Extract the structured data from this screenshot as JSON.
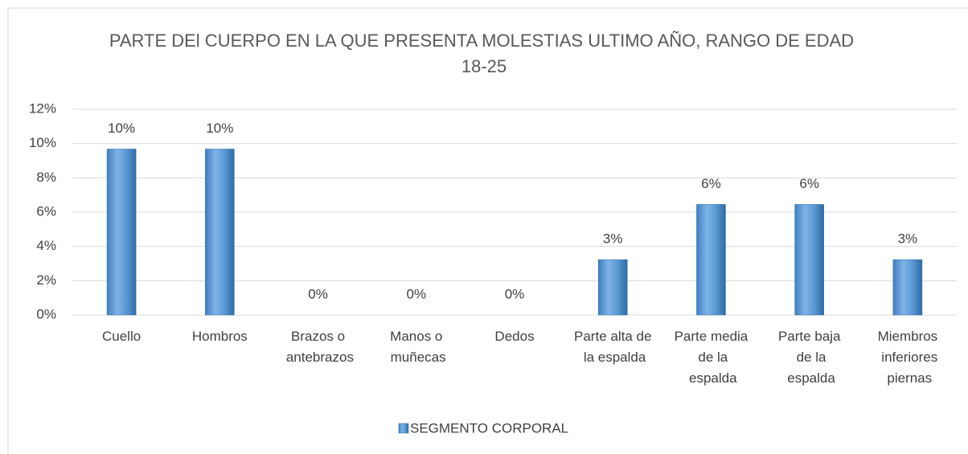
{
  "chart_data": {
    "type": "bar",
    "title": "PARTE DEl CUERPO EN LA QUE PRESENTA MOLESTIAS ULTIMO AÑO, RANGO DE EDAD  18-25",
    "categories": [
      "Cuello",
      "Hombros",
      "Brazos o antebrazos",
      "Manos o muñecas",
      "Dedos",
      "Parte alta de la espalda",
      "Parte media de la espalda",
      "Parte baja de la espalda",
      "Miembros inferiores piernas"
    ],
    "series": [
      {
        "name": "SEGMENTO CORPORAL",
        "color": "#5b9bd5",
        "values": [
          9.68,
          9.68,
          0,
          0,
          0,
          3.23,
          6.45,
          6.45,
          3.23
        ],
        "value_labels": [
          "10%",
          "10%",
          "0%",
          "0%",
          "0%",
          "3%",
          "6%",
          "6%",
          "3%"
        ]
      }
    ],
    "ylim": [
      0,
      12
    ],
    "yticks": [
      {
        "value": 0,
        "label": "0%"
      },
      {
        "value": 2,
        "label": "2%"
      },
      {
        "value": 4,
        "label": "4%"
      },
      {
        "value": 6,
        "label": "6%"
      },
      {
        "value": 8,
        "label": "8%"
      },
      {
        "value": 10,
        "label": "10%"
      },
      {
        "value": 12,
        "label": "12%"
      }
    ],
    "grid": true,
    "legend": "bottom"
  }
}
